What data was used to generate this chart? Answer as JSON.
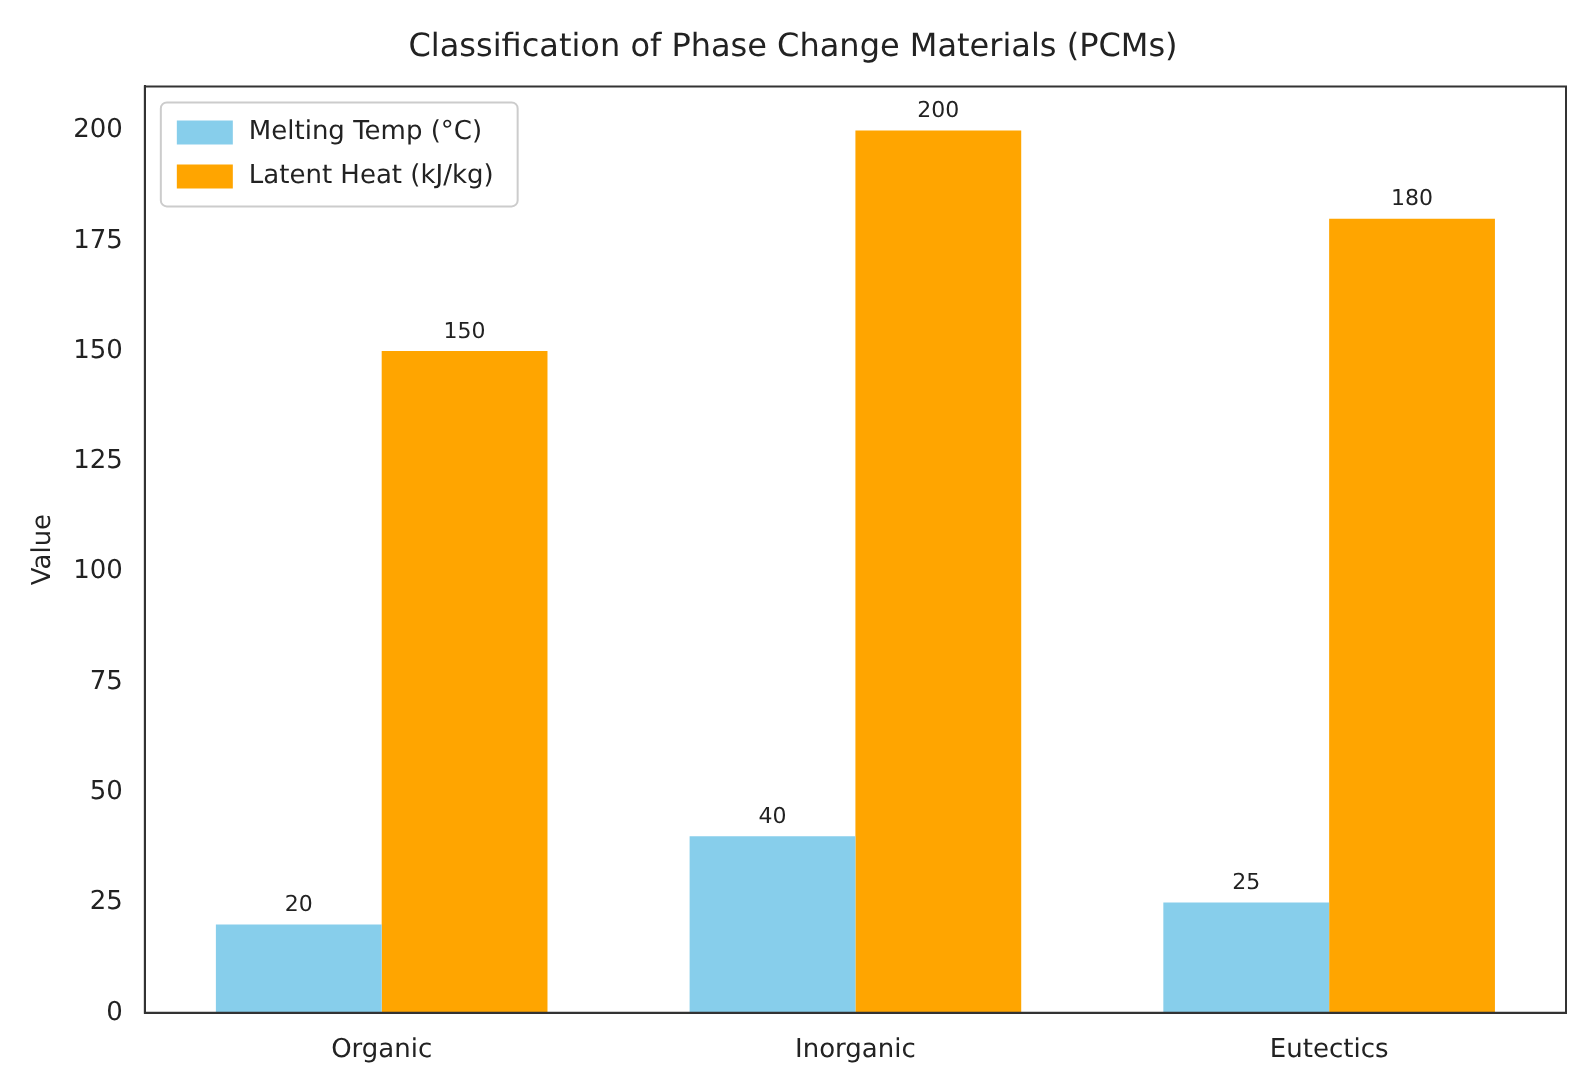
{
  "chart_data": {
    "type": "bar",
    "title": "Classification of Phase Change Materials (PCMs)",
    "ylabel": "Value",
    "categories": [
      "Organic",
      "Inorganic",
      "Eutectics"
    ],
    "series": [
      {
        "name": "Melting Temp (°C)",
        "color": "#87ceeb",
        "values": [
          20,
          40,
          25
        ]
      },
      {
        "name": "Latent Heat (kJ/kg)",
        "color": "#ffa500",
        "values": [
          150,
          200,
          180
        ]
      }
    ],
    "ylim": [
      0,
      210
    ],
    "yticks": [
      0,
      25,
      50,
      75,
      100,
      125,
      150,
      175,
      200
    ],
    "grid": false,
    "legend": "top left",
    "data_labels": true
  }
}
